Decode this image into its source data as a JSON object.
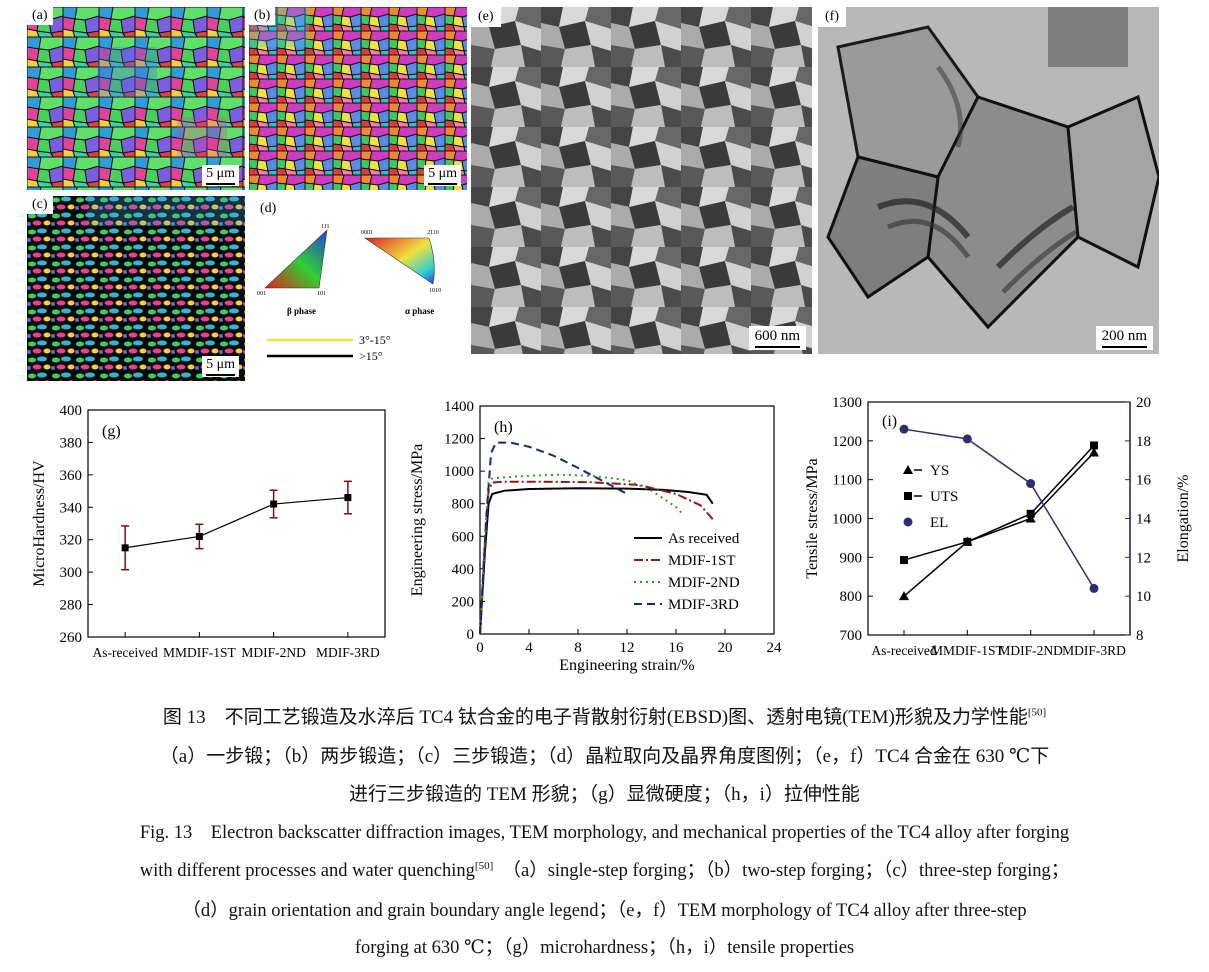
{
  "panels": {
    "a": {
      "label": "(a)",
      "scale": "5 μm"
    },
    "b": {
      "label": "(b)",
      "scale": "5 μm"
    },
    "c": {
      "label": "(c)",
      "scale": "5 μm"
    },
    "d": {
      "label": "(d)",
      "beta_label": "β phase",
      "alpha_label": "α phase",
      "beta_corners": [
        "111",
        "001",
        "101"
      ],
      "alpha_corners": [
        "0001",
        "2110",
        "1010"
      ],
      "legend": [
        {
          "text": "3°-15°",
          "color": "#f2e14a"
        },
        {
          "text": ">15°",
          "color": "#000000"
        }
      ]
    },
    "e": {
      "label": "(e)",
      "scale": "600 nm"
    },
    "f": {
      "label": "(f)",
      "scale": "200 nm"
    }
  },
  "chart_data": [
    {
      "id": "g",
      "type": "scatter",
      "label": "(g)",
      "ylabel": "MicroHardness/HV",
      "ylim": [
        260,
        400
      ],
      "yticks": [
        260,
        280,
        300,
        320,
        340,
        360,
        380,
        400
      ],
      "categories": [
        "As-received",
        "MMDIF-1ST",
        "MDIF-2ND",
        "MDIF-3RD"
      ],
      "values": [
        315,
        322,
        342,
        346
      ],
      "errors": [
        13.5,
        7.5,
        8.5,
        10
      ],
      "colors": {
        "line": "#000000",
        "error": "#7a1010"
      }
    },
    {
      "id": "h",
      "type": "line",
      "label": "(h)",
      "xlabel": "Engineering strain/%",
      "ylabel": "Engineering stress/MPa",
      "xlim": [
        0,
        24
      ],
      "ylim": [
        0,
        1400
      ],
      "xticks": [
        0,
        4,
        8,
        12,
        16,
        20,
        24
      ],
      "yticks": [
        0,
        200,
        400,
        600,
        800,
        1000,
        1200,
        1400
      ],
      "series": [
        {
          "name": "As received",
          "color": "#000000",
          "dash": "",
          "points": [
            [
              0,
              0
            ],
            [
              0.4,
              500
            ],
            [
              0.7,
              800
            ],
            [
              1,
              860
            ],
            [
              2,
              880
            ],
            [
              4,
              890
            ],
            [
              8,
              895
            ],
            [
              12,
              893
            ],
            [
              15,
              885
            ],
            [
              17,
              872
            ],
            [
              18.5,
              855
            ],
            [
              19,
              800
            ]
          ]
        },
        {
          "name": "MDIF-1ST",
          "color": "#8b1a1a",
          "dash": "9 3 2 3",
          "points": [
            [
              0,
              0
            ],
            [
              0.4,
              550
            ],
            [
              0.7,
              880
            ],
            [
              1,
              930
            ],
            [
              2,
              935
            ],
            [
              5,
              935
            ],
            [
              9,
              932
            ],
            [
              13,
              915
            ],
            [
              16,
              860
            ],
            [
              18,
              790
            ],
            [
              19,
              705
            ]
          ]
        },
        {
          "name": "MDIF-2ND",
          "color": "#2e9e2e",
          "dash": "2 4",
          "points": [
            [
              0,
              0
            ],
            [
              0.4,
              600
            ],
            [
              0.7,
              930
            ],
            [
              1,
              955
            ],
            [
              2,
              962
            ],
            [
              4,
              972
            ],
            [
              6.5,
              978
            ],
            [
              9,
              972
            ],
            [
              12,
              945
            ],
            [
              14,
              880
            ],
            [
              16,
              780
            ],
            [
              16.5,
              740
            ]
          ]
        },
        {
          "name": "MDIF-3RD",
          "color": "#1a2a6e",
          "dash": "8 5",
          "points": [
            [
              0,
              0
            ],
            [
              0.5,
              700
            ],
            [
              0.9,
              1110
            ],
            [
              1.3,
              1175
            ],
            [
              2.5,
              1175
            ],
            [
              4,
              1150
            ],
            [
              6,
              1095
            ],
            [
              8,
              1020
            ],
            [
              9.5,
              960
            ],
            [
              11,
              900
            ],
            [
              12,
              860
            ]
          ]
        }
      ]
    },
    {
      "id": "i",
      "type": "line",
      "label": "(i)",
      "ylabel": "Tensile stress/MPa",
      "y2label": "Elongation/%",
      "ylim": [
        700,
        1300
      ],
      "y2lim": [
        8,
        20
      ],
      "yticks": [
        700,
        800,
        900,
        1000,
        1100,
        1200,
        1300
      ],
      "y2ticks": [
        8,
        10,
        12,
        14,
        16,
        18,
        20
      ],
      "categories": [
        "As-received",
        "MMDIF-1ST",
        "MDIF-2ND",
        "MDIF-3RD"
      ],
      "series": [
        {
          "name": "YS",
          "marker": "triangle",
          "color": "#000000",
          "axis": "left",
          "values": [
            800,
            940,
            1000,
            1170
          ]
        },
        {
          "name": "UTS",
          "marker": "square",
          "color": "#000000",
          "axis": "left",
          "values": [
            893,
            940,
            1012,
            1188
          ]
        },
        {
          "name": "EL",
          "marker": "circle",
          "color": "#2d2f6e",
          "axis": "right",
          "values": [
            18.6,
            18.1,
            15.8,
            10.4
          ]
        }
      ]
    }
  ],
  "caption": {
    "cn_title": "图 13　不同工艺锻造及水淬后 TC4 钛合金的电子背散射衍射(EBSD)图、透射电镜(TEM)形貌及力学性能",
    "cn_ref": "[50]",
    "cn_line2": "（a）一步锻；（b）两步锻造；（c）三步锻造；（d）晶粒取向及晶界角度图例；（e，f）TC4 合金在 630 ℃下",
    "cn_line3": "进行三步锻造的 TEM 形貌；（g）显微硬度；（h，i）拉伸性能",
    "en_line1": "Fig. 13　Electron backscatter diffraction images, TEM morphology, and mechanical properties of the TC4 alloy after forging",
    "en_line2a": "with different processes and water quenching",
    "en_ref": "[50]",
    "en_line2b": "　（a）single-step forging；（b）two-step forging；（c）three-step forging；",
    "en_line3": "（d）grain orientation and grain boundary angle legend；（e，f）TEM morphology of TC4 alloy after three-step",
    "en_line4": "forging at 630 ℃；（g）microhardness；（h，i）tensile properties"
  }
}
